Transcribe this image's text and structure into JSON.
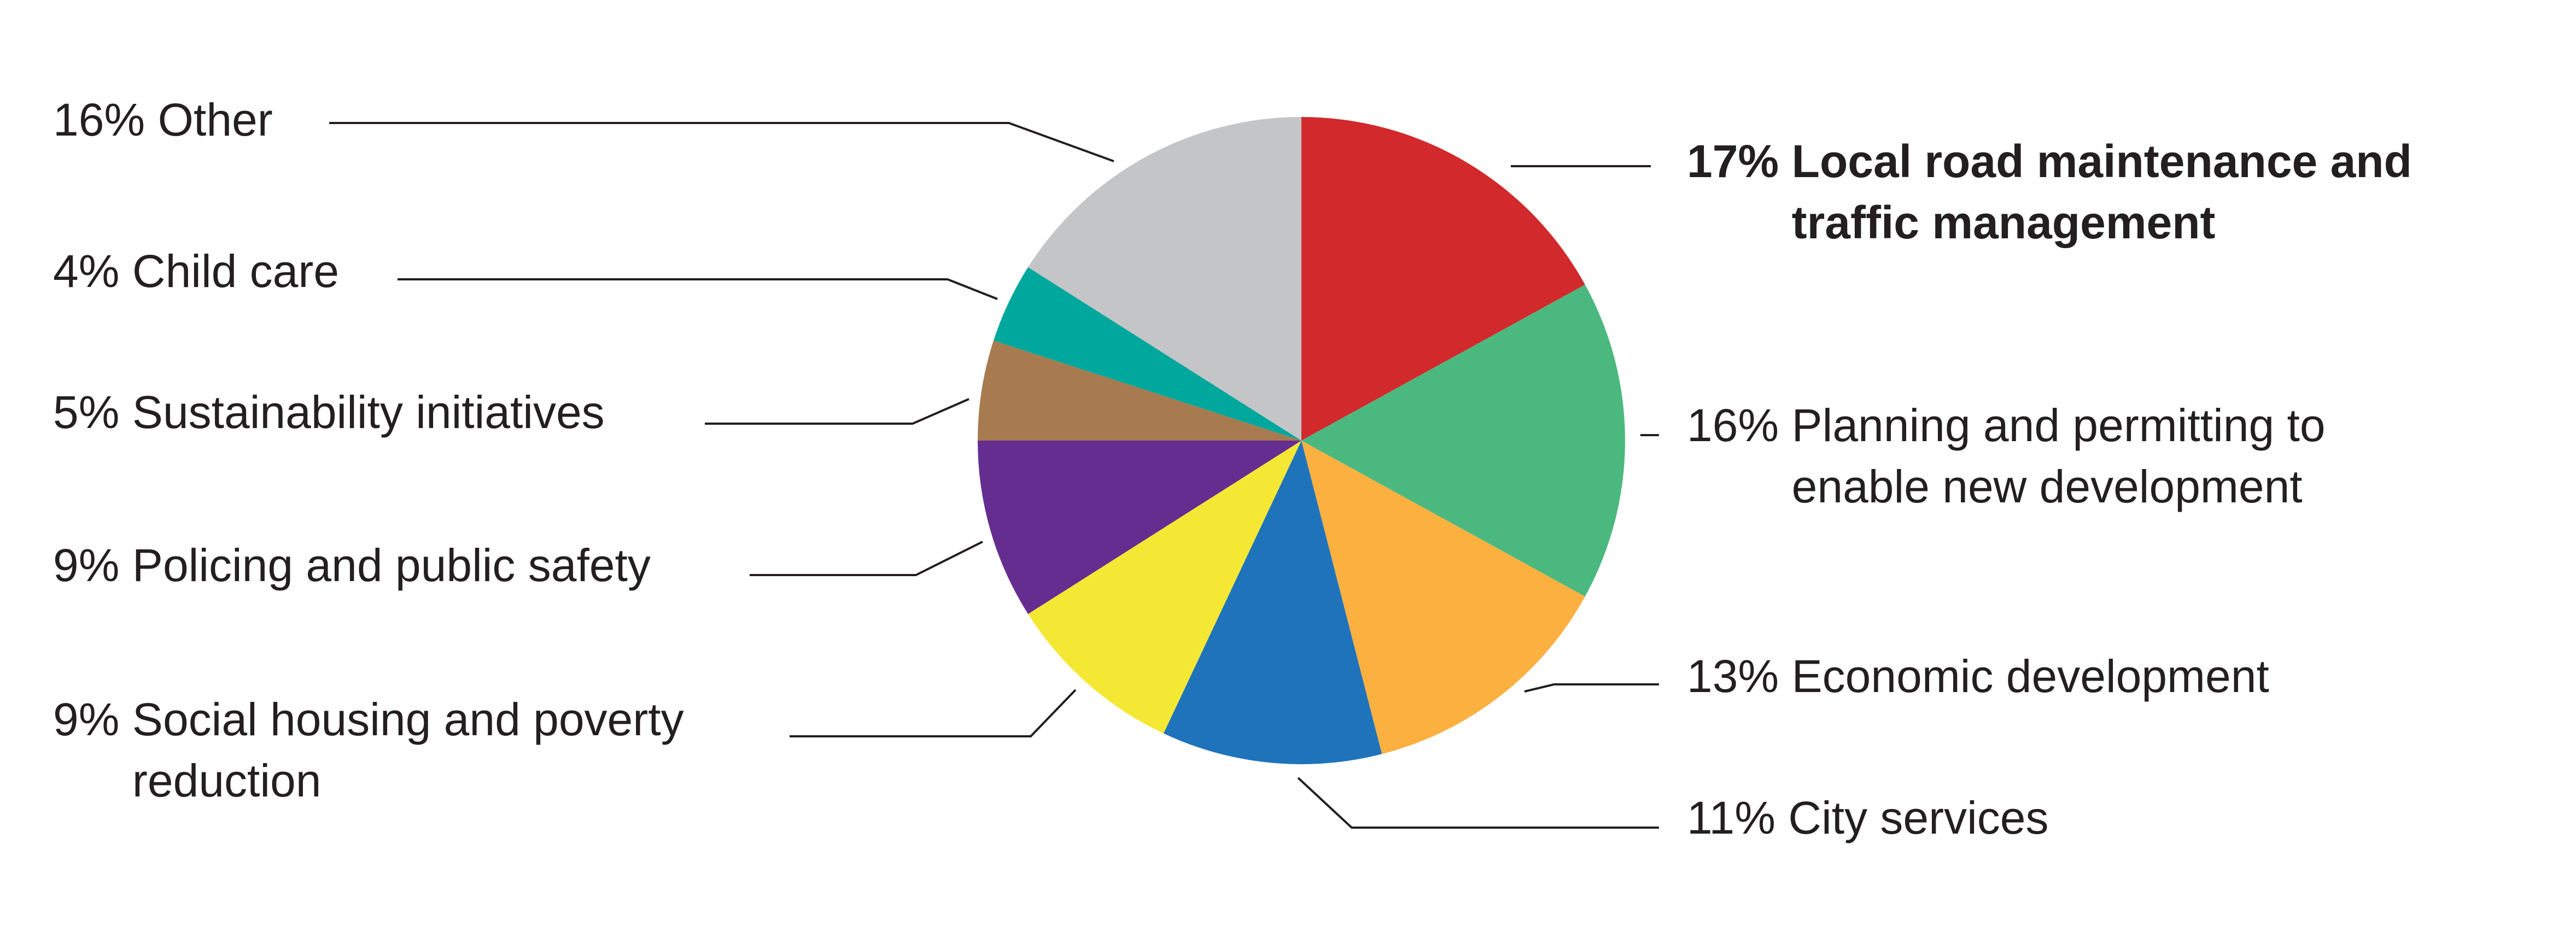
{
  "chart_data": {
    "type": "pie",
    "categories": [
      "Local road maintenance and traffic management",
      "Planning and permitting to enable new development",
      "Economic development",
      "City services",
      "Social housing and poverty reduction",
      "Policing and public safety",
      "Sustainability initiatives",
      "Child care",
      "Other"
    ],
    "values": [
      17,
      16,
      13,
      11,
      9,
      9,
      5,
      4,
      16
    ],
    "value_labels": [
      "17%",
      "16%",
      "13%",
      "11%",
      "9%",
      "9%",
      "5%",
      "4%",
      "16%"
    ],
    "colors": [
      "#d2292c",
      "#4bb97f",
      "#fbb040",
      "#1f73bb",
      "#f5e834",
      "#662d91",
      "#a77b4f",
      "#00a79d",
      "#c4c5c7"
    ]
  }
}
